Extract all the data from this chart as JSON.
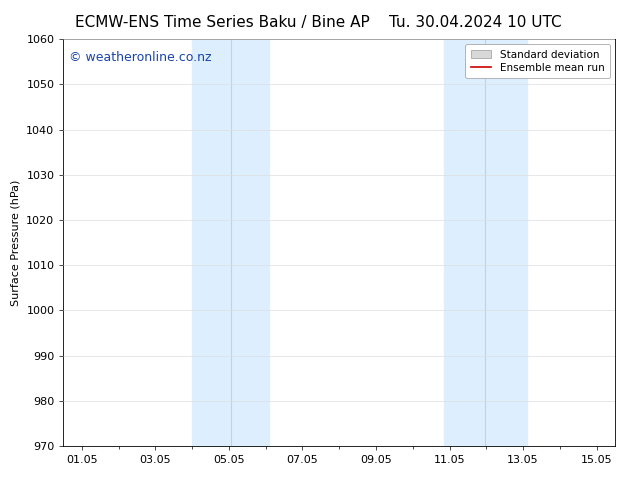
{
  "title_left": "ECMW-ENS Time Series Baku / Bine AP",
  "title_right": "Tu. 30.04.2024 10 UTC",
  "ylabel": "Surface Pressure (hPa)",
  "ylim": [
    970,
    1060
  ],
  "yticks": [
    970,
    980,
    990,
    1000,
    1010,
    1020,
    1030,
    1040,
    1050,
    1060
  ],
  "xtick_labels": [
    "01.05",
    "03.05",
    "05.05",
    "07.05",
    "09.05",
    "11.05",
    "13.05",
    "15.05"
  ],
  "xtick_positions": [
    0,
    2,
    4,
    6,
    8,
    10,
    12,
    14
  ],
  "xlim": [
    -0.5,
    14.5
  ],
  "shaded_regions": [
    {
      "x_start": 3.0,
      "x_end": 3.85,
      "color": "#ddeeff"
    },
    {
      "x_start": 3.85,
      "x_end": 5.1,
      "color": "#ddeeff"
    },
    {
      "x_start": 9.85,
      "x_end": 10.75,
      "color": "#ddeeff"
    },
    {
      "x_start": 10.75,
      "x_end": 12.1,
      "color": "#ddeeff"
    }
  ],
  "shaded_bands": [
    {
      "x_start": 3.0,
      "x_end": 5.1
    },
    {
      "x_start": 9.85,
      "x_end": 12.1
    }
  ],
  "shaded_color": "#ddeeff",
  "shaded_inner_line_color": "#b8d4f0",
  "watermark_text": "© weatheronline.co.nz",
  "watermark_color": "#1a44aa",
  "watermark_fontsize": 9,
  "legend_std_label": "Standard deviation",
  "legend_mean_label": "Ensemble mean run",
  "legend_std_facecolor": "#d8d8d8",
  "legend_std_edgecolor": "#999999",
  "legend_mean_color": "#cc0000",
  "title_fontsize": 11,
  "axis_fontsize": 8,
  "ylabel_fontsize": 8,
  "background_color": "#ffffff",
  "grid_color": "#dddddd",
  "spine_color": "#000000"
}
